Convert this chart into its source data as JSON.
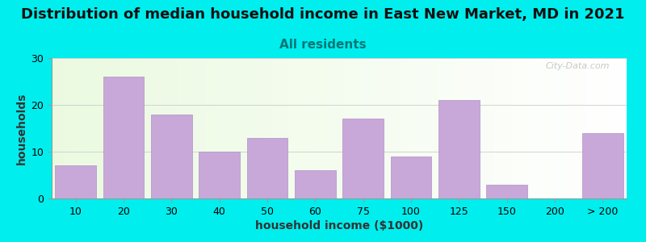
{
  "title": "Distribution of median household income in East New Market, MD in 2021",
  "subtitle": "All residents",
  "xlabel": "household income ($1000)",
  "ylabel": "households",
  "background_color": "#00EEEE",
  "bar_color": "#C8A8D8",
  "bar_edge_color": "#B090C8",
  "categories": [
    "10",
    "20",
    "30",
    "40",
    "50",
    "60",
    "75",
    "100",
    "125",
    "150",
    "200",
    "> 200"
  ],
  "values": [
    7,
    26,
    18,
    10,
    13,
    6,
    17,
    9,
    21,
    3,
    0,
    14
  ],
  "bar_positions": [
    0,
    1,
    2,
    3,
    4,
    5,
    6,
    7,
    8,
    9,
    10,
    11
  ],
  "ylim": [
    0,
    30
  ],
  "yticks": [
    0,
    10,
    20,
    30
  ],
  "watermark": "City-Data.com",
  "title_fontsize": 13,
  "subtitle_fontsize": 11,
  "axis_label_fontsize": 10,
  "tick_fontsize": 9
}
